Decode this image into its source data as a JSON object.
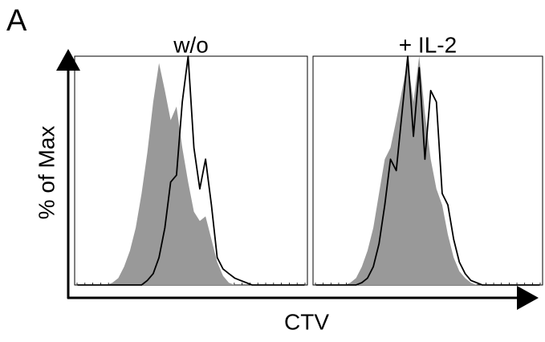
{
  "panel_label": "A",
  "y_label": "% of Max",
  "x_label": "CTV",
  "chart_data": [
    {
      "type": "histogram-overlay",
      "title": "w/o",
      "ylim": [
        0,
        100
      ],
      "series": [
        {
          "color": "#999999",
          "filled": true,
          "values": [
            0,
            0,
            0,
            0,
            0,
            0,
            1,
            3,
            8,
            15,
            25,
            40,
            58,
            80,
            97,
            85,
            72,
            78,
            60,
            45,
            32,
            28,
            30,
            20,
            10,
            4,
            1,
            0,
            0,
            0,
            0,
            0,
            0,
            0,
            0,
            0,
            0,
            0,
            0,
            0
          ]
        },
        {
          "color": "#000000",
          "filled": false,
          "values": [
            0,
            0,
            0,
            0,
            0,
            0,
            0,
            0,
            0,
            0,
            0,
            0,
            2,
            5,
            12,
            25,
            45,
            48,
            80,
            100,
            60,
            42,
            55,
            35,
            12,
            7,
            5,
            3,
            2,
            1,
            0,
            0,
            0,
            0,
            0,
            0,
            0,
            0,
            0,
            0
          ]
        }
      ]
    },
    {
      "type": "histogram-overlay",
      "title": "+ IL-2",
      "ylim": [
        0,
        100
      ],
      "series": [
        {
          "color": "#999999",
          "filled": true,
          "values": [
            0,
            0,
            0,
            0,
            0,
            0,
            1,
            3,
            8,
            15,
            25,
            40,
            55,
            60,
            72,
            85,
            98,
            80,
            100,
            75,
            55,
            42,
            35,
            22,
            12,
            6,
            3,
            1,
            0,
            0,
            0,
            0,
            0,
            0,
            0,
            0,
            0,
            0,
            0,
            0
          ]
        },
        {
          "color": "#000000",
          "filled": false,
          "values": [
            0,
            0,
            0,
            0,
            0,
            0,
            0,
            0,
            1,
            3,
            8,
            18,
            35,
            55,
            50,
            75,
            100,
            65,
            95,
            55,
            85,
            80,
            40,
            35,
            20,
            10,
            5,
            2,
            1,
            0,
            0,
            0,
            0,
            0,
            0,
            0,
            0,
            0,
            0,
            0
          ]
        }
      ]
    }
  ]
}
